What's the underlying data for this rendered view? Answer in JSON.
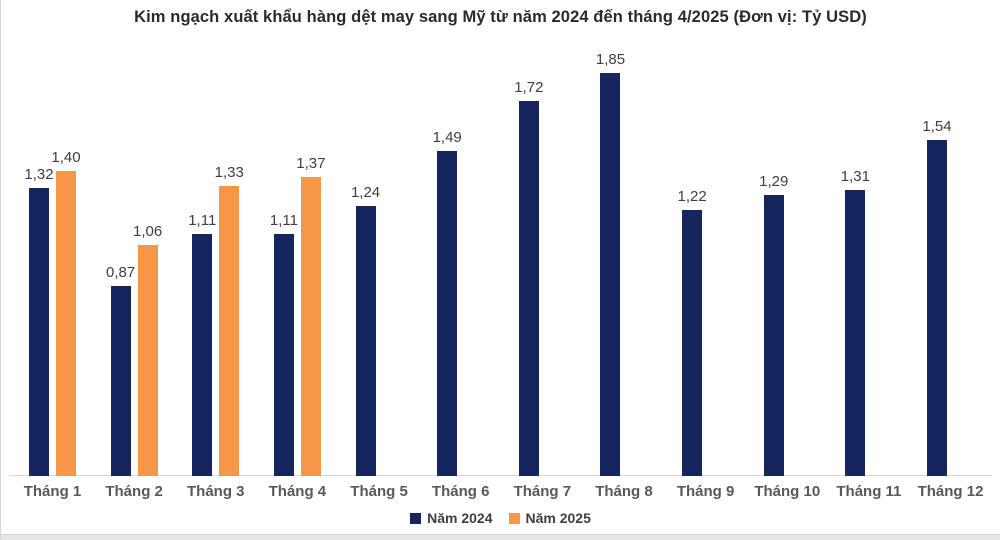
{
  "title": "Kim ngạch xuất khẩu hàng dệt may sang Mỹ từ năm 2024 đến tháng 4/2025 (Đơn vị: Tỷ USD)",
  "colors": {
    "year2024": "#15265f",
    "year2025": "#f79646",
    "axis_line": "#d9d9d9",
    "data_label": "#404040",
    "category_label": "#595959"
  },
  "legend": {
    "items": [
      {
        "label": "Năm 2024",
        "color": "#15265f"
      },
      {
        "label": "Năm 2025",
        "color": "#f79646"
      }
    ]
  },
  "chart_data": {
    "type": "bar",
    "title": "Kim ngạch xuất khẩu hàng dệt may sang Mỹ từ năm 2024 đến tháng 4/2025 (Đơn vị: Tỷ USD)",
    "categories": [
      "Tháng 1",
      "Tháng 2",
      "Tháng 3",
      "Tháng 4",
      "Tháng 5",
      "Tháng 6",
      "Tháng 7",
      "Tháng 8",
      "Tháng 9",
      "Tháng 10",
      "Tháng 11",
      "Tháng 12"
    ],
    "series": [
      {
        "name": "Năm 2024",
        "color": "#15265f",
        "values": [
          1.32,
          0.87,
          1.11,
          1.11,
          1.24,
          1.49,
          1.72,
          1.85,
          1.22,
          1.29,
          1.31,
          1.54
        ]
      },
      {
        "name": "Năm 2025",
        "color": "#f79646",
        "values": [
          1.4,
          1.06,
          1.33,
          1.37,
          null,
          null,
          null,
          null,
          null,
          null,
          null,
          null
        ]
      }
    ],
    "value_label_format": "comma-decimal",
    "xlabel": "",
    "ylabel": "",
    "ylim": [
      0,
      2.0
    ],
    "grid": false,
    "legend_position": "bottom",
    "data_labels": true
  }
}
